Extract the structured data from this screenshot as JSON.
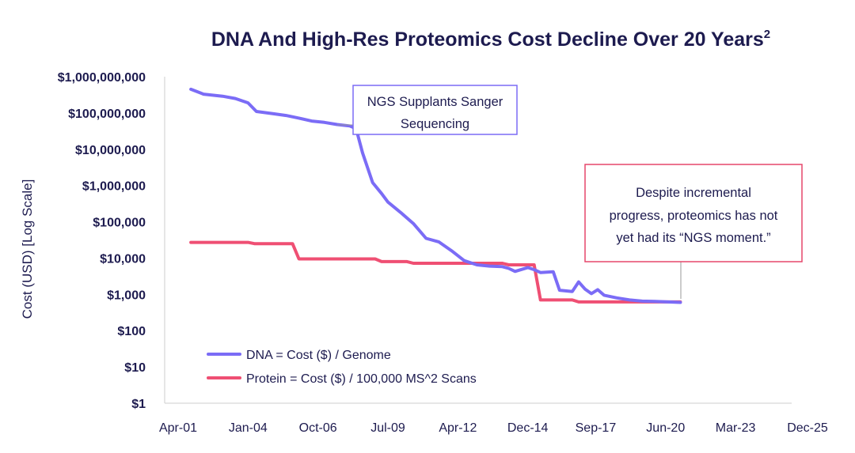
{
  "chart_data": {
    "type": "line",
    "title": "DNA And High-Res Proteomics Cost Decline Over 20 Years",
    "title_superscript": "2",
    "ylabel": "Cost (USD) [Log Scale]",
    "xlabel": "",
    "yscale": "log",
    "ylim": [
      1,
      1000000000
    ],
    "xlim": [
      2001.25,
      2026.0
    ],
    "y_ticks": [
      {
        "value": 1000000000,
        "label": "$1,000,000,000"
      },
      {
        "value": 100000000,
        "label": "$100,000,000"
      },
      {
        "value": 10000000,
        "label": "$10,000,000"
      },
      {
        "value": 1000000,
        "label": "$1,000,000"
      },
      {
        "value": 100000,
        "label": "$100,000"
      },
      {
        "value": 10000,
        "label": "$10,000"
      },
      {
        "value": 1000,
        "label": "$1,000"
      },
      {
        "value": 100,
        "label": "$100"
      },
      {
        "value": 10,
        "label": "$10"
      },
      {
        "value": 1,
        "label": "$1"
      }
    ],
    "x_ticks": [
      {
        "value": 2001.25,
        "label": "Apr-01"
      },
      {
        "value": 2004.0,
        "label": "Jan-04"
      },
      {
        "value": 2006.75,
        "label": "Oct-06"
      },
      {
        "value": 2009.5,
        "label": "Jul-09"
      },
      {
        "value": 2012.25,
        "label": "Apr-12"
      },
      {
        "value": 2015.0,
        "label": "Dec-14"
      },
      {
        "value": 2017.67,
        "label": "Sep-17"
      },
      {
        "value": 2020.42,
        "label": "Jun-20"
      },
      {
        "value": 2023.17,
        "label": "Mar-23"
      },
      {
        "value": 2026.0,
        "label": "Dec-25"
      }
    ],
    "series": [
      {
        "name": "DNA = Cost ($) / Genome",
        "color": "#7b6cf6",
        "points": [
          [
            2001.75,
            450000000
          ],
          [
            2002.25,
            330000000
          ],
          [
            2003.0,
            290000000
          ],
          [
            2003.5,
            250000000
          ],
          [
            2004.0,
            190000000
          ],
          [
            2004.33,
            110000000
          ],
          [
            2005.0,
            95000000
          ],
          [
            2005.5,
            85000000
          ],
          [
            2006.0,
            72000000
          ],
          [
            2006.5,
            60000000
          ],
          [
            2007.0,
            55000000
          ],
          [
            2007.5,
            48000000
          ],
          [
            2008.0,
            44000000
          ],
          [
            2008.25,
            37000000
          ],
          [
            2008.5,
            8000000
          ],
          [
            2008.9,
            1200000
          ],
          [
            2009.25,
            600000
          ],
          [
            2009.5,
            350000
          ],
          [
            2010.0,
            180000
          ],
          [
            2010.5,
            90000
          ],
          [
            2011.0,
            35000
          ],
          [
            2011.5,
            28000
          ],
          [
            2012.0,
            16000
          ],
          [
            2012.5,
            8500
          ],
          [
            2013.0,
            6500
          ],
          [
            2013.5,
            6000
          ],
          [
            2014.0,
            5800
          ],
          [
            2014.25,
            5200
          ],
          [
            2014.5,
            4300
          ],
          [
            2015.0,
            5500
          ],
          [
            2015.25,
            4800
          ],
          [
            2015.5,
            4000
          ],
          [
            2016.0,
            4200
          ],
          [
            2016.25,
            1300
          ],
          [
            2016.75,
            1200
          ],
          [
            2017.0,
            2200
          ],
          [
            2017.25,
            1400
          ],
          [
            2017.5,
            1050
          ],
          [
            2017.75,
            1350
          ],
          [
            2018.0,
            950
          ],
          [
            2018.5,
            800
          ],
          [
            2019.0,
            700
          ],
          [
            2019.5,
            650
          ],
          [
            2020.0,
            640
          ],
          [
            2020.5,
            620
          ],
          [
            2021.0,
            600
          ]
        ]
      },
      {
        "name": "Protein = Cost ($) / 100,000 MS^2 Scans",
        "color": "#ef4f73",
        "points": [
          [
            2001.75,
            27000
          ],
          [
            2004.0,
            27000
          ],
          [
            2004.25,
            25000
          ],
          [
            2005.75,
            25000
          ],
          [
            2006.0,
            9500
          ],
          [
            2009.0,
            9500
          ],
          [
            2009.25,
            8000
          ],
          [
            2010.25,
            8000
          ],
          [
            2010.5,
            7200
          ],
          [
            2014.0,
            7200
          ],
          [
            2014.25,
            6500
          ],
          [
            2015.25,
            6500
          ],
          [
            2015.5,
            700
          ],
          [
            2016.75,
            700
          ],
          [
            2017.0,
            620
          ],
          [
            2021.0,
            620
          ]
        ]
      }
    ],
    "legend_position": "bottom-left",
    "annotations": [
      {
        "lines": [
          "NGS Supplants Sanger",
          "Sequencing"
        ],
        "border_color": "#7b6cf6"
      },
      {
        "lines": [
          "Despite incremental",
          "progress, proteomics has not",
          "yet had its “NGS moment.”"
        ],
        "border_color": "#e6476b"
      }
    ],
    "grid": false
  }
}
